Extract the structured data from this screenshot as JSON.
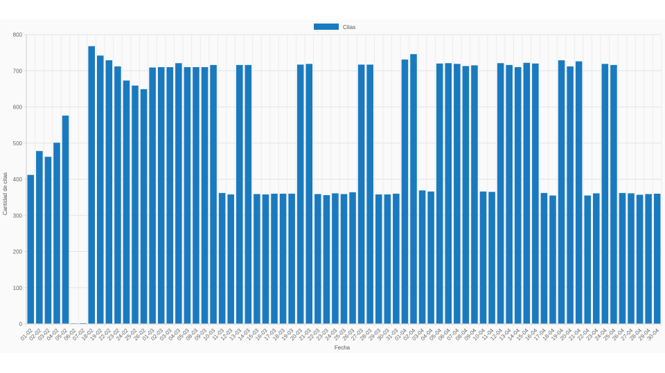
{
  "chart_data": {
    "type": "bar",
    "title": "",
    "xlabel": "Fecha",
    "ylabel": "Cantidad de citas",
    "ylim": [
      0,
      800
    ],
    "yticks": [
      0,
      100,
      200,
      300,
      400,
      500,
      600,
      700,
      800
    ],
    "grid": true,
    "legend": "top-center",
    "color": "#1a7abf",
    "categories": [
      "01-02",
      "02-02",
      "03-02",
      "04-02",
      "05-02",
      "06-02",
      "07-02",
      "18-02",
      "19-02",
      "22-02",
      "23-02",
      "24-02",
      "25-02",
      "26-02",
      "01-03",
      "02-03",
      "03-03",
      "04-03",
      "05-03",
      "08-03",
      "09-03",
      "10-03",
      "11-03",
      "12-03",
      "13-03",
      "14-03",
      "15-03",
      "16-03",
      "17-03",
      "18-03",
      "19-03",
      "20-03",
      "21-03",
      "22-03",
      "23-03",
      "24-03",
      "25-03",
      "26-03",
      "27-03",
      "28-03",
      "29-03",
      "30-03",
      "31-03",
      "01-04",
      "02-04",
      "03-04",
      "04-04",
      "05-04",
      "06-04",
      "07-04",
      "08-04",
      "09-04",
      "10-04",
      "11-04",
      "12-04",
      "13-04",
      "14-04",
      "15-04",
      "16-04",
      "17-04",
      "18-04",
      "19-04",
      "20-04",
      "21-04",
      "22-04",
      "23-04",
      "24-04",
      "25-04",
      "26-04",
      "27-04",
      "28-04",
      "29-04",
      "30-04"
    ],
    "series": [
      {
        "name": "Citas",
        "values": [
          412,
          478,
          462,
          501,
          576,
          1,
          2,
          768,
          742,
          729,
          712,
          673,
          659,
          649,
          709,
          710,
          710,
          721,
          710,
          710,
          710,
          716,
          362,
          358,
          716,
          716,
          359,
          358,
          360,
          360,
          360,
          717,
          719,
          359,
          356,
          361,
          359,
          364,
          717,
          717,
          358,
          358,
          360,
          731,
          746,
          369,
          366,
          720,
          721,
          719,
          713,
          715,
          366,
          365,
          721,
          716,
          710,
          722,
          720,
          362,
          355,
          729,
          712,
          726,
          355,
          361,
          719,
          716,
          362,
          361,
          357,
          359,
          360
        ]
      }
    ]
  }
}
